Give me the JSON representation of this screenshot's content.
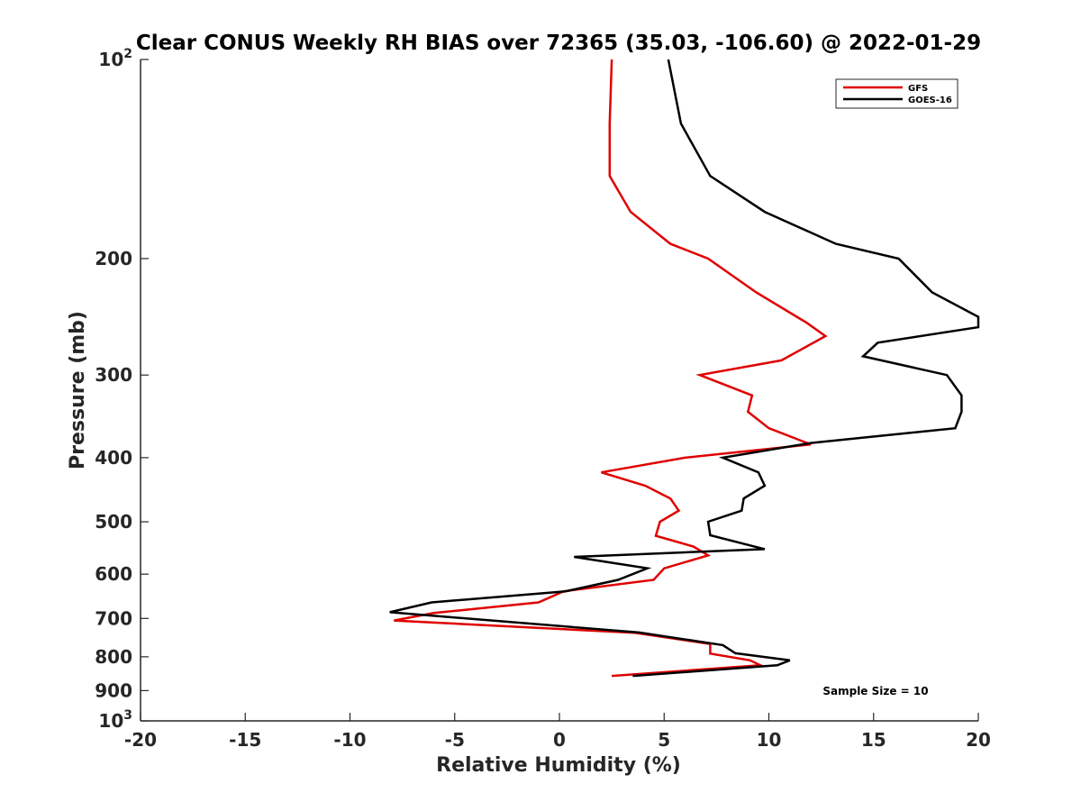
{
  "chart_data": {
    "type": "line",
    "title": "Clear CONUS Weekly RH BIAS over 72365 (35.03, -106.60) @ 2022-01-29",
    "xlabel": "Relative Humidity (%)",
    "ylabel": "Pressure (mb)",
    "xlim": [
      -20,
      20
    ],
    "ylim": [
      100,
      1000
    ],
    "y_scale": "log",
    "y_reversed": true,
    "x_ticks": [
      -20,
      -15,
      -10,
      -5,
      0,
      5,
      10,
      15,
      20
    ],
    "x_tick_labels": [
      "-20",
      "-15",
      "-10",
      "-5",
      "0",
      "5",
      "10",
      "15",
      "20"
    ],
    "y_ticks": [
      200,
      300,
      400,
      500,
      600,
      700,
      800,
      900
    ],
    "y_tick_labels": [
      "200",
      "300",
      "400",
      "500",
      "600",
      "700",
      "800",
      "900"
    ],
    "y_tick_top": {
      "base": "10",
      "exp": "2"
    },
    "y_tick_bottom": {
      "base": "10",
      "exp": "3"
    },
    "legend_position": "top-right",
    "grid": false,
    "series": [
      {
        "name": "GFS",
        "color": "#e00000",
        "points": [
          [
            2.5,
            100
          ],
          [
            2.4,
            125
          ],
          [
            2.4,
            150
          ],
          [
            3.4,
            170
          ],
          [
            5.3,
            190
          ],
          [
            7.1,
            200
          ],
          [
            9.4,
            225
          ],
          [
            11.8,
            250
          ],
          [
            12.7,
            262
          ],
          [
            10.6,
            285
          ],
          [
            6.7,
            300
          ],
          [
            9.2,
            322
          ],
          [
            9.0,
            341
          ],
          [
            10.0,
            361
          ],
          [
            12.0,
            382
          ],
          [
            6.0,
            400
          ],
          [
            2.0,
            421
          ],
          [
            4.1,
            441
          ],
          [
            5.3,
            461
          ],
          [
            5.7,
            481
          ],
          [
            4.8,
            500
          ],
          [
            4.6,
            525
          ],
          [
            6.4,
            545
          ],
          [
            7.1,
            562
          ],
          [
            5.0,
            588
          ],
          [
            4.5,
            612
          ],
          [
            0.2,
            637
          ],
          [
            -1.0,
            662
          ],
          [
            -6.0,
            687
          ],
          [
            -7.9,
            705
          ],
          [
            3.6,
            736
          ],
          [
            7.2,
            765
          ],
          [
            7.2,
            791
          ],
          [
            9.1,
            810
          ],
          [
            9.6,
            824
          ],
          [
            2.5,
            855
          ]
        ]
      },
      {
        "name": "GOES-16",
        "color": "#000000",
        "points": [
          [
            5.2,
            100
          ],
          [
            5.8,
            125
          ],
          [
            7.2,
            150
          ],
          [
            9.8,
            170
          ],
          [
            13.2,
            190
          ],
          [
            16.2,
            200
          ],
          [
            17.8,
            225
          ],
          [
            20.0,
            245
          ],
          [
            20.0,
            254
          ],
          [
            15.2,
            268
          ],
          [
            14.5,
            281
          ],
          [
            18.5,
            300
          ],
          [
            19.2,
            322
          ],
          [
            19.2,
            341
          ],
          [
            18.9,
            361
          ],
          [
            12.0,
            380
          ],
          [
            7.8,
            400
          ],
          [
            9.5,
            421
          ],
          [
            9.8,
            441
          ],
          [
            8.8,
            461
          ],
          [
            8.7,
            481
          ],
          [
            7.1,
            500
          ],
          [
            7.2,
            524
          ],
          [
            9.8,
            550
          ],
          [
            0.7,
            565
          ],
          [
            4.2,
            588
          ],
          [
            2.8,
            612
          ],
          [
            0.3,
            637
          ],
          [
            -6.1,
            662
          ],
          [
            -8.1,
            685
          ],
          [
            3.8,
            735
          ],
          [
            7.8,
            768
          ],
          [
            8.4,
            790
          ],
          [
            11.0,
            810
          ],
          [
            10.4,
            824
          ],
          [
            3.5,
            855
          ]
        ]
      }
    ],
    "annotation": "Sample Size = 10"
  }
}
